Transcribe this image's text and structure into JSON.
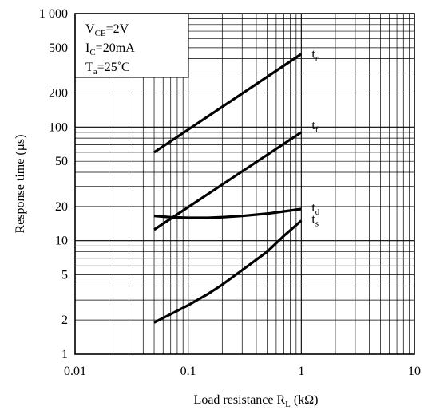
{
  "chart_data": {
    "type": "line",
    "x_scale": "log",
    "y_scale": "log",
    "xlim": [
      0.01,
      10
    ],
    "ylim": [
      1,
      1000
    ],
    "grid": true,
    "xlabel": {
      "main": "Load resistance R",
      "sub": "L",
      "unit": " (kΩ)"
    },
    "ylabel": "Response time (µs)",
    "x_ticks": [
      {
        "value": 0.01,
        "label": "0.01"
      },
      {
        "value": 0.1,
        "label": "0.1"
      },
      {
        "value": 1,
        "label": "1"
      },
      {
        "value": 10,
        "label": "10"
      }
    ],
    "y_ticks": [
      {
        "value": 1,
        "label": "1"
      },
      {
        "value": 2,
        "label": "2"
      },
      {
        "value": 5,
        "label": "5"
      },
      {
        "value": 10,
        "label": "10"
      },
      {
        "value": 20,
        "label": "20"
      },
      {
        "value": 50,
        "label": "50"
      },
      {
        "value": 100,
        "label": "100"
      },
      {
        "value": 200,
        "label": "200"
      },
      {
        "value": 500,
        "label": "500"
      },
      {
        "value": 1000,
        "label": "1 000"
      }
    ],
    "conditions": [
      {
        "main": "V",
        "sub": "CE",
        "rest": "=2V"
      },
      {
        "main": "I",
        "sub": "C",
        "rest": "=20mA"
      },
      {
        "main": "T",
        "sub": "a",
        "rest": "=25˚C"
      }
    ],
    "series": [
      {
        "main": "t",
        "sub": "r",
        "x": [
          0.05,
          1
        ],
        "y": [
          60,
          440
        ]
      },
      {
        "main": "t",
        "sub": "f",
        "x": [
          0.05,
          1
        ],
        "y": [
          12.5,
          90
        ]
      },
      {
        "main": "t",
        "sub": "d",
        "x": [
          0.05,
          0.07,
          0.1,
          0.15,
          0.2,
          0.3,
          0.5,
          0.7,
          1
        ],
        "y": [
          16.5,
          16.1,
          15.9,
          15.9,
          16.1,
          16.5,
          17.3,
          18.1,
          19
        ]
      },
      {
        "main": "t",
        "sub": "s",
        "x": [
          0.05,
          0.07,
          0.1,
          0.15,
          0.2,
          0.3,
          0.5,
          0.7,
          1
        ],
        "y": [
          1.9,
          2.25,
          2.7,
          3.4,
          4.1,
          5.5,
          8,
          11,
          15
        ]
      }
    ]
  }
}
